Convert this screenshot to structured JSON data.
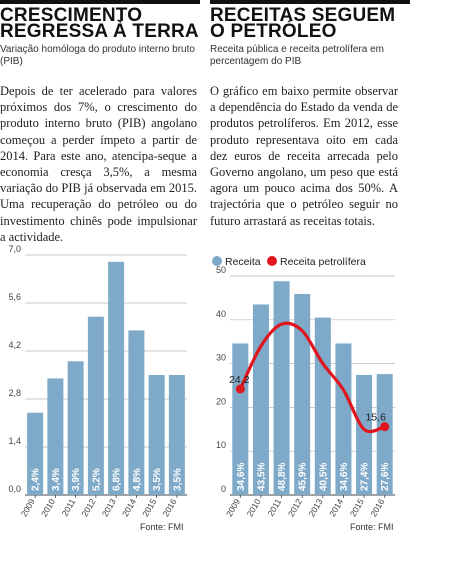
{
  "left": {
    "headline": "CRESCIMENTO\nREGRESSA À TERRA",
    "subtitle": "Variação homóloga do produto interno bruto\n(PIB)",
    "body": "Depois de ter acelerado para valores próximos dos 7%, o crescimento do produto interno bruto (PIB) angolano começou a perder ímpeto a partir de 2014. Para este ano, atencipa-seque a economia cresça 3,5%, a mesma variação do PIB já observada em 2015. Uma recuperação do petróleo ou do investimento chinês pode impulsionar a actividade.",
    "source": "Fonte: FMI"
  },
  "right": {
    "headline": "RECEITAS SEGUEM\nO PETRÓLEO",
    "subtitle": "Receita pública e receita petrolífera em\npercentagem do PIB",
    "body": "O gráfico em baixo permite observar a dependência do Estado da venda de produtos petrolíferos. Em 2012, esse produto representava oito em cada dez euros de receita arrecada pelo Governo angolano, um peso que está agora um pouco acima dos 50%. A trajectória que o petróleo seguir no futuro arrastará as receitas totais.",
    "source": "Fonte: FMI"
  },
  "colors": {
    "bar": "#7ea9c8",
    "line": "#e0161f",
    "grid": "#b8b8b8",
    "axis": "#444444",
    "bar_label": "#ffffff"
  },
  "chart_data": [
    {
      "type": "bar",
      "categories": [
        "2009",
        "2010",
        "2011",
        "2012",
        "2013",
        "2014",
        "2015",
        "2016"
      ],
      "values": [
        2.4,
        3.4,
        3.9,
        5.2,
        6.8,
        4.8,
        3.5,
        3.5
      ],
      "value_labels": [
        "2,4%",
        "3,4%",
        "3,9%",
        "5,2%",
        "6,8%",
        "4,8%",
        "3,5%",
        "3,5%"
      ],
      "yticks": [
        0,
        1.4,
        2.8,
        4.2,
        5.6,
        7.0
      ],
      "ytick_labels": [
        "0,0",
        "1,4",
        "2,8",
        "4,2",
        "5,6",
        "7,0"
      ],
      "ylim": [
        0,
        7.0
      ],
      "grid": true
    },
    {
      "type": "bar+line",
      "categories": [
        "2009",
        "2010",
        "2011",
        "2012",
        "2013",
        "2014",
        "2015",
        "2016"
      ],
      "series": [
        {
          "name": "Receita",
          "type": "bar",
          "values": [
            34.6,
            43.5,
            48.8,
            45.9,
            40.5,
            34.6,
            27.4,
            27.6
          ],
          "value_labels": [
            "34,6%",
            "43,5%",
            "48,8%",
            "45,9%",
            "40,5%",
            "34,6%",
            "27,4%",
            "27,6%"
          ]
        },
        {
          "name": "Receita petrolífera",
          "type": "line",
          "values": [
            24.2,
            34.0,
            39.0,
            37.5,
            30.0,
            24.0,
            15.0,
            15.6
          ],
          "point_labels": [
            "24,2",
            "",
            "",
            "",
            "",
            "",
            "",
            "15,6"
          ]
        }
      ],
      "yticks": [
        0,
        10,
        20,
        30,
        40,
        50
      ],
      "ytick_labels": [
        "0",
        "10",
        "20",
        "30",
        "40",
        "50"
      ],
      "ylim": [
        0,
        50
      ],
      "legend": "top",
      "grid": true
    }
  ]
}
